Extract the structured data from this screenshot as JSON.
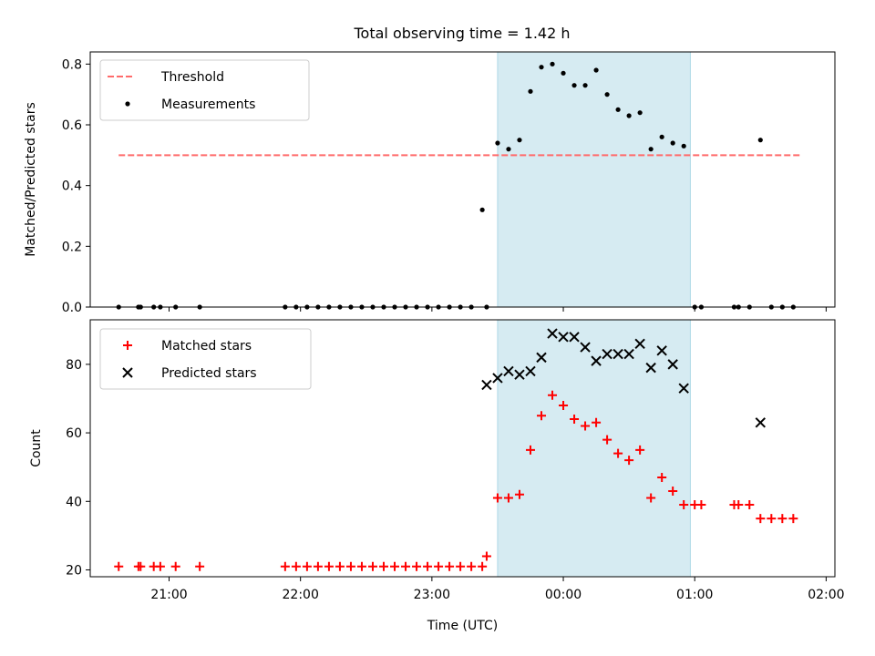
{
  "figure": {
    "title": "Total observing time = 1.42 h"
  },
  "chart_data": [
    {
      "type": "scatter",
      "panel": "top",
      "title": "Total observing time = 1.42 h",
      "xlabel": "",
      "ylabel": "Matched/Predicted stars",
      "xlim": [
        "20:24",
        "02:04"
      ],
      "ylim": [
        0,
        0.84
      ],
      "yticks": [
        0.0,
        0.2,
        0.4,
        0.6,
        0.8
      ],
      "ytick_labels": [
        "0.0",
        "0.2",
        "0.4",
        "0.6",
        "0.8"
      ],
      "shaded_region": {
        "start": "23:30",
        "end": "00:58",
        "color": "#add8e6"
      },
      "threshold": {
        "name": "Threshold",
        "value": 0.5,
        "x_start": "20:37",
        "x_end": "01:48",
        "color": "#ff6b6b",
        "style": "dashed"
      },
      "legend_location": "upper left",
      "legend": [
        "Threshold",
        "Measurements"
      ],
      "series": [
        {
          "name": "Measurements",
          "marker": "dot",
          "color": "#000000",
          "x": [
            "20:37",
            "20:46",
            "20:47",
            "20:53",
            "20:56",
            "21:03",
            "21:14",
            "21:53",
            "21:58",
            "22:03",
            "22:08",
            "22:13",
            "22:18",
            "22:23",
            "22:28",
            "22:33",
            "22:38",
            "22:43",
            "22:48",
            "22:53",
            "22:58",
            "23:03",
            "23:08",
            "23:13",
            "23:18",
            "23:23",
            "23:25",
            "23:30",
            "23:35",
            "23:40",
            "23:45",
            "23:50",
            "23:55",
            "00:00",
            "00:05",
            "00:10",
            "00:15",
            "00:20",
            "00:25",
            "00:30",
            "00:35",
            "00:40",
            "00:45",
            "00:50",
            "00:55",
            "01:00",
            "01:03",
            "01:18",
            "01:20",
            "01:25",
            "01:30",
            "01:35",
            "01:40",
            "01:45"
          ],
          "y": [
            0,
            0,
            0,
            0,
            0,
            0,
            0,
            0,
            0,
            0,
            0,
            0,
            0,
            0,
            0,
            0,
            0,
            0,
            0,
            0,
            0,
            0,
            0,
            0,
            0,
            0.32,
            0,
            0.54,
            0.52,
            0.55,
            0.71,
            0.79,
            0.8,
            0.77,
            0.73,
            0.73,
            0.78,
            0.7,
            0.65,
            0.63,
            0.64,
            0.52,
            0.56,
            0.54,
            0.53,
            0,
            0,
            0,
            0,
            0,
            0.55,
            0,
            0,
            0
          ]
        }
      ]
    },
    {
      "type": "scatter",
      "panel": "bottom",
      "xlabel": "Time (UTC)",
      "ylabel": "Count",
      "xlim": [
        "20:24",
        "02:04"
      ],
      "ylim": [
        18,
        93
      ],
      "xticks": [
        "21:00",
        "22:00",
        "23:00",
        "00:00",
        "01:00",
        "02:00"
      ],
      "yticks": [
        20,
        40,
        60,
        80
      ],
      "ytick_labels": [
        "20",
        "40",
        "60",
        "80"
      ],
      "shaded_region": {
        "start": "23:30",
        "end": "00:58",
        "color": "#add8e6"
      },
      "legend_location": "upper left",
      "legend": [
        "Matched stars",
        "Predicted stars"
      ],
      "series": [
        {
          "name": "Matched stars",
          "marker": "plus",
          "color": "#ff0000",
          "x": [
            "20:37",
            "20:46",
            "20:47",
            "20:53",
            "20:56",
            "21:03",
            "21:14",
            "21:53",
            "21:58",
            "22:03",
            "22:08",
            "22:13",
            "22:18",
            "22:23",
            "22:28",
            "22:33",
            "22:38",
            "22:43",
            "22:48",
            "22:53",
            "22:58",
            "23:03",
            "23:08",
            "23:13",
            "23:18",
            "23:23",
            "23:25",
            "23:30",
            "23:35",
            "23:40",
            "23:45",
            "23:50",
            "23:55",
            "00:00",
            "00:05",
            "00:10",
            "00:15",
            "00:20",
            "00:25",
            "00:30",
            "00:35",
            "00:40",
            "00:45",
            "00:50",
            "00:55",
            "01:00",
            "01:03",
            "01:18",
            "01:20",
            "01:25",
            "01:30",
            "01:35",
            "01:40",
            "01:45"
          ],
          "y": [
            21,
            21,
            21,
            21,
            21,
            21,
            21,
            21,
            21,
            21,
            21,
            21,
            21,
            21,
            21,
            21,
            21,
            21,
            21,
            21,
            21,
            21,
            21,
            21,
            21,
            21,
            24,
            41,
            41,
            42,
            55,
            65,
            71,
            68,
            64,
            62,
            63,
            58,
            54,
            52,
            55,
            41,
            47,
            43,
            39,
            39,
            39,
            39,
            39,
            39,
            35,
            35,
            35,
            35
          ]
        },
        {
          "name": "Predicted stars",
          "marker": "x",
          "color": "#000000",
          "x": [
            "23:25",
            "23:30",
            "23:35",
            "23:40",
            "23:45",
            "23:50",
            "23:55",
            "00:00",
            "00:05",
            "00:10",
            "00:15",
            "00:20",
            "00:25",
            "00:30",
            "00:35",
            "00:40",
            "00:45",
            "00:50",
            "00:55",
            "01:30"
          ],
          "y": [
            74,
            76,
            78,
            77,
            78,
            82,
            89,
            88,
            88,
            85,
            81,
            83,
            83,
            83,
            86,
            79,
            84,
            80,
            73,
            63
          ]
        }
      ]
    }
  ]
}
